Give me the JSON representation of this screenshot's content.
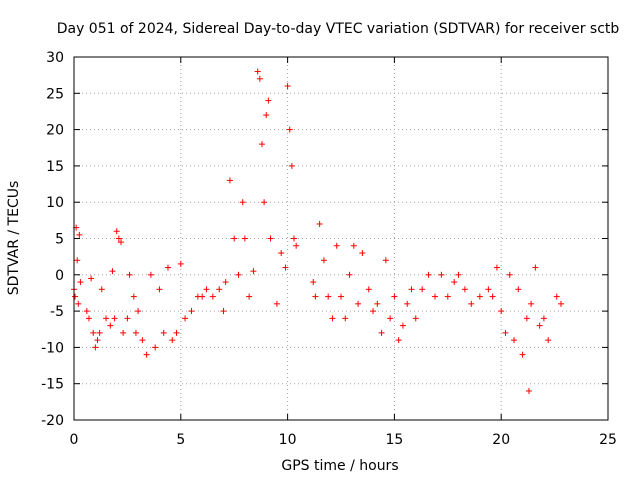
{
  "chart_data": {
    "type": "scatter",
    "title": "Day 051 of 2024, Sidereal Day-to-day VTEC variation (SDTVAR) for receiver sctb",
    "xlabel": "GPS time / hours",
    "ylabel": "SDTVAR / TECUs",
    "xlim": [
      0,
      25
    ],
    "ylim": [
      -20,
      30
    ],
    "xticks": [
      "0",
      "5",
      "10",
      "15",
      "20",
      "25"
    ],
    "yticks": [
      "-20",
      "-15",
      "-10",
      "-5",
      "0",
      "5",
      "10",
      "15",
      "20",
      "25",
      "30"
    ],
    "grid": true,
    "marker": "+",
    "color": "#ff0000",
    "series": [
      {
        "name": "sctb",
        "points": [
          [
            0.0,
            -2
          ],
          [
            0.05,
            -3
          ],
          [
            0.1,
            6.5
          ],
          [
            0.15,
            2
          ],
          [
            0.2,
            -4
          ],
          [
            0.25,
            5.5
          ],
          [
            0.3,
            -1
          ],
          [
            0.6,
            -5
          ],
          [
            0.7,
            -6
          ],
          [
            0.8,
            -0.5
          ],
          [
            0.9,
            -8
          ],
          [
            1.0,
            -10
          ],
          [
            1.1,
            -9
          ],
          [
            1.2,
            -8
          ],
          [
            1.3,
            -2
          ],
          [
            1.5,
            -6
          ],
          [
            1.7,
            -7
          ],
          [
            1.8,
            0.5
          ],
          [
            1.9,
            -6
          ],
          [
            2.0,
            6
          ],
          [
            2.1,
            5
          ],
          [
            2.2,
            4.5
          ],
          [
            2.3,
            -8
          ],
          [
            2.5,
            -6
          ],
          [
            2.6,
            0
          ],
          [
            2.8,
            -3
          ],
          [
            2.9,
            -8
          ],
          [
            3.0,
            -5
          ],
          [
            3.2,
            -9
          ],
          [
            3.4,
            -11
          ],
          [
            3.6,
            0
          ],
          [
            3.8,
            -10
          ],
          [
            4.0,
            -2
          ],
          [
            4.2,
            -8
          ],
          [
            4.4,
            1
          ],
          [
            4.6,
            -9
          ],
          [
            4.8,
            -8
          ],
          [
            5.0,
            1.5
          ],
          [
            5.2,
            -6
          ],
          [
            5.5,
            -5
          ],
          [
            5.8,
            -3
          ],
          [
            6.0,
            -3
          ],
          [
            6.2,
            -2
          ],
          [
            6.5,
            -3
          ],
          [
            6.8,
            -2
          ],
          [
            7.0,
            -5
          ],
          [
            7.1,
            -1
          ],
          [
            7.3,
            13
          ],
          [
            7.5,
            5
          ],
          [
            7.7,
            0
          ],
          [
            7.9,
            10
          ],
          [
            8.0,
            5
          ],
          [
            8.2,
            -3
          ],
          [
            8.4,
            0.5
          ],
          [
            8.6,
            28
          ],
          [
            8.7,
            27
          ],
          [
            8.8,
            18
          ],
          [
            8.9,
            10
          ],
          [
            9.0,
            22
          ],
          [
            9.1,
            24
          ],
          [
            9.2,
            5
          ],
          [
            9.5,
            -4
          ],
          [
            9.7,
            3
          ],
          [
            9.9,
            1
          ],
          [
            10.0,
            26
          ],
          [
            10.1,
            20
          ],
          [
            10.2,
            15
          ],
          [
            10.3,
            5
          ],
          [
            10.4,
            4
          ],
          [
            11.2,
            -1
          ],
          [
            11.3,
            -3
          ],
          [
            11.5,
            7
          ],
          [
            11.7,
            2
          ],
          [
            11.9,
            -3
          ],
          [
            12.1,
            -6
          ],
          [
            12.3,
            4
          ],
          [
            12.5,
            -3
          ],
          [
            12.7,
            -6
          ],
          [
            12.9,
            0
          ],
          [
            13.1,
            4
          ],
          [
            13.3,
            -4
          ],
          [
            13.5,
            3
          ],
          [
            13.8,
            -2
          ],
          [
            14.0,
            -5
          ],
          [
            14.2,
            -4
          ],
          [
            14.4,
            -8
          ],
          [
            14.6,
            2
          ],
          [
            14.8,
            -6
          ],
          [
            15.0,
            -3
          ],
          [
            15.2,
            -9
          ],
          [
            15.4,
            -7
          ],
          [
            15.6,
            -4
          ],
          [
            15.8,
            -2
          ],
          [
            16.0,
            -6
          ],
          [
            16.3,
            -2
          ],
          [
            16.6,
            0
          ],
          [
            16.9,
            -3
          ],
          [
            17.2,
            0
          ],
          [
            17.5,
            -3
          ],
          [
            17.8,
            -1
          ],
          [
            18.0,
            0
          ],
          [
            18.3,
            -2
          ],
          [
            18.6,
            -4
          ],
          [
            19.0,
            -3
          ],
          [
            19.4,
            -2
          ],
          [
            19.6,
            -3
          ],
          [
            19.8,
            1
          ],
          [
            20.0,
            -5
          ],
          [
            20.2,
            -8
          ],
          [
            20.4,
            0
          ],
          [
            20.6,
            -9
          ],
          [
            20.8,
            -2
          ],
          [
            21.0,
            -11
          ],
          [
            21.2,
            -6
          ],
          [
            21.3,
            -16
          ],
          [
            21.4,
            -4
          ],
          [
            21.6,
            1
          ],
          [
            21.8,
            -7
          ],
          [
            22.0,
            -6
          ],
          [
            22.2,
            -9
          ],
          [
            22.6,
            -3
          ],
          [
            22.8,
            -4
          ]
        ]
      }
    ]
  }
}
